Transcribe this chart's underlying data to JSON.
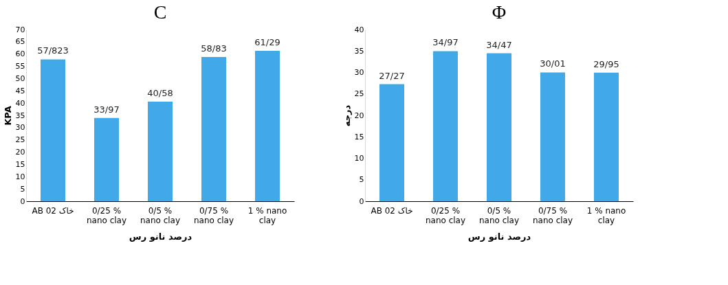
{
  "chart_data": [
    {
      "type": "bar",
      "title": "C",
      "xlabel": "درصد نانو رس",
      "ylabel": "KPA",
      "categories": [
        "AB 02 خاک",
        "0/25 %\nnano clay",
        "0/5 %\nnano clay",
        "0/75 %\nnano clay",
        "1 % nano\nclay"
      ],
      "values": [
        57.823,
        33.97,
        40.58,
        58.83,
        61.29
      ],
      "value_labels": [
        "57/823",
        "33/97",
        "40/58",
        "58/83",
        "61/29"
      ],
      "color": "#41a9e8",
      "ylim": [
        0,
        70
      ],
      "yticks": [
        0,
        5,
        10,
        15,
        20,
        25,
        30,
        35,
        40,
        45,
        50,
        55,
        60,
        65,
        70
      ]
    },
    {
      "type": "bar",
      "title": "Φ",
      "xlabel": "درصد نانو رس",
      "ylabel": "درجه",
      "categories": [
        "AB 02 خاک",
        "0/25 %\nnano clay",
        "0/5 %\nnano clay",
        "0/75 %\nnano clay",
        "1 % nano\nclay"
      ],
      "values": [
        27.27,
        34.97,
        34.47,
        30.01,
        29.95
      ],
      "value_labels": [
        "27/27",
        "34/97",
        "34/47",
        "30/01",
        "29/95"
      ],
      "color": "#41a9e8",
      "ylim": [
        0,
        40
      ],
      "yticks": [
        0,
        5,
        10,
        15,
        20,
        25,
        30,
        35,
        40
      ]
    }
  ]
}
